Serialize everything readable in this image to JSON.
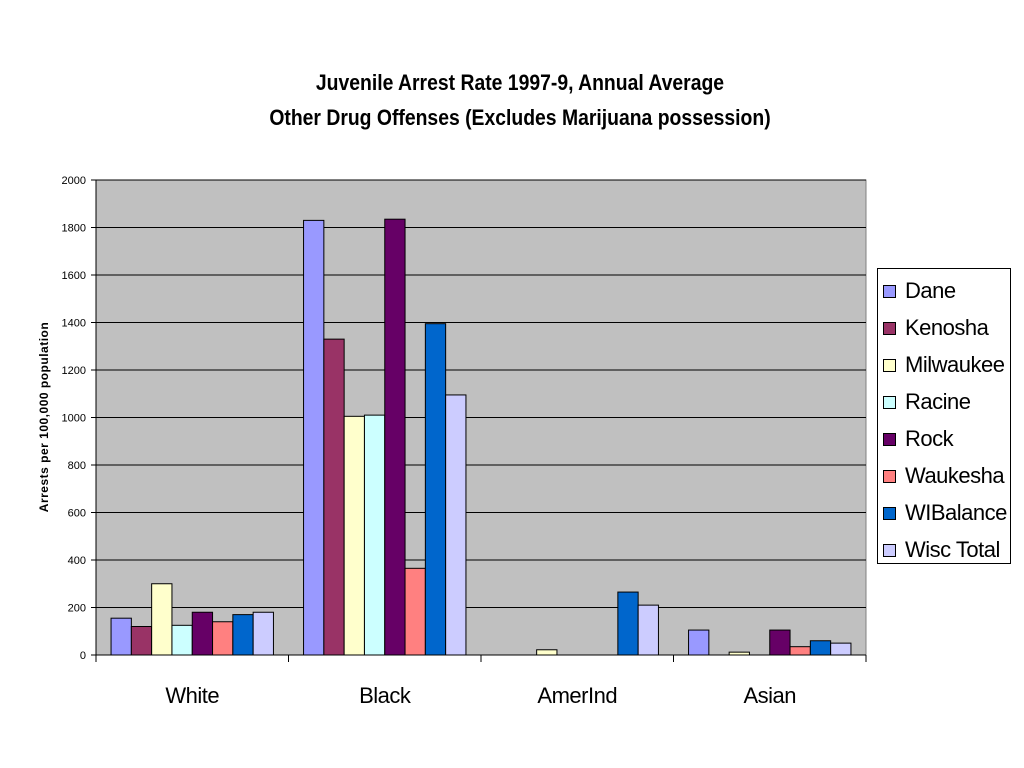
{
  "chart_data": {
    "type": "bar",
    "title": "Juvenile Arrest Rate 1997-9, Annual Average",
    "subtitle": "Other Drug Offenses (Excludes Marijuana possession)",
    "xlabel": "",
    "ylabel": "Arrests per 100,000 population",
    "ylim": [
      0,
      2000
    ],
    "yticks": [
      0,
      200,
      400,
      600,
      800,
      1000,
      1200,
      1400,
      1600,
      1800,
      2000
    ],
    "grid": true,
    "legend_position": "right",
    "categories": [
      "White",
      "Black",
      "AmerInd",
      "Asian"
    ],
    "series": [
      {
        "name": "Dane",
        "color": "#9999FF",
        "values": [
          155,
          1830,
          0,
          105
        ]
      },
      {
        "name": "Kenosha",
        "color": "#993366",
        "values": [
          120,
          1330,
          0,
          0
        ]
      },
      {
        "name": "Milwaukee",
        "color": "#FFFFCC",
        "values": [
          300,
          1005,
          22,
          12
        ]
      },
      {
        "name": "Racine",
        "color": "#CCFFFF",
        "values": [
          125,
          1010,
          0,
          0
        ]
      },
      {
        "name": "Rock",
        "color": "#660066",
        "values": [
          180,
          1835,
          0,
          105
        ]
      },
      {
        "name": "Waukesha",
        "color": "#FF8080",
        "values": [
          140,
          365,
          0,
          35
        ]
      },
      {
        "name": "WIBalance",
        "color": "#0066CC",
        "values": [
          170,
          1395,
          265,
          60
        ]
      },
      {
        "name": "Wisc Total",
        "color": "#CCCCFF",
        "values": [
          180,
          1095,
          210,
          50
        ]
      }
    ]
  }
}
